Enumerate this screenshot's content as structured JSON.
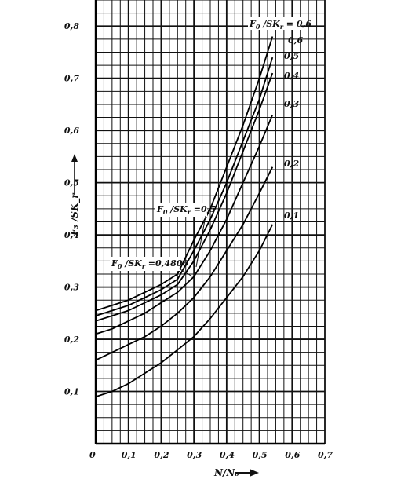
{
  "chart_data": {
    "type": "line",
    "title": "",
    "xlabel": "N/N₀",
    "ylabel": "F₃ /SK_r",
    "xlim": [
      0,
      0.7
    ],
    "ylim": [
      0,
      0.85
    ],
    "grid": true,
    "x_ticks": [
      "0",
      "0,1",
      "0,2",
      "0,3",
      "0,4",
      "0,5",
      "0,6",
      "0,7"
    ],
    "y_ticks": [
      "0,1",
      "0,2",
      "0,3",
      "0,4",
      "0,5",
      "0,6",
      "0,7",
      "0,8"
    ],
    "series": [
      {
        "name": "0,1",
        "x": [
          0,
          0.05,
          0.1,
          0.15,
          0.2,
          0.25,
          0.3,
          0.35,
          0.4,
          0.45,
          0.5,
          0.54
        ],
        "y": [
          0.09,
          0.1,
          0.115,
          0.135,
          0.155,
          0.18,
          0.205,
          0.24,
          0.28,
          0.32,
          0.37,
          0.42
        ]
      },
      {
        "name": "0,2",
        "x": [
          0,
          0.05,
          0.1,
          0.15,
          0.2,
          0.25,
          0.3,
          0.35,
          0.4,
          0.45,
          0.5,
          0.54
        ],
        "y": [
          0.16,
          0.175,
          0.19,
          0.205,
          0.225,
          0.25,
          0.28,
          0.32,
          0.37,
          0.42,
          0.48,
          0.53
        ]
      },
      {
        "name": "0,3",
        "x": [
          0,
          0.05,
          0.1,
          0.15,
          0.2,
          0.25,
          0.3,
          0.35,
          0.4,
          0.45,
          0.5,
          0.54
        ],
        "y": [
          0.21,
          0.22,
          0.235,
          0.25,
          0.27,
          0.29,
          0.32,
          0.37,
          0.43,
          0.5,
          0.57,
          0.63
        ]
      },
      {
        "name": "0,4",
        "x": [
          0,
          0.05,
          0.1,
          0.15,
          0.2,
          0.25,
          0.3,
          0.35,
          0.4,
          0.45,
          0.5,
          0.54
        ],
        "y": [
          0.235,
          0.245,
          0.255,
          0.27,
          0.285,
          0.305,
          0.35,
          0.41,
          0.48,
          0.56,
          0.64,
          0.71
        ]
      },
      {
        "name": "0,5",
        "x": [
          0,
          0.05,
          0.1,
          0.15,
          0.2,
          0.25,
          0.3,
          0.35,
          0.4,
          0.45,
          0.5,
          0.54
        ],
        "y": [
          0.245,
          0.255,
          0.265,
          0.28,
          0.295,
          0.315,
          0.37,
          0.43,
          0.5,
          0.58,
          0.66,
          0.74
        ]
      },
      {
        "name": "0,6",
        "x": [
          0,
          0.05,
          0.1,
          0.15,
          0.2,
          0.25,
          0.3,
          0.35,
          0.4,
          0.45,
          0.5,
          0.54
        ],
        "y": [
          0.255,
          0.265,
          0.275,
          0.29,
          0.305,
          0.325,
          0.39,
          0.45,
          0.53,
          0.61,
          0.7,
          0.78
        ]
      }
    ],
    "curve_labels": [
      "0,6",
      "0,5",
      "0,4",
      "0,3",
      "0,2",
      "0,1"
    ],
    "annotations": [
      {
        "main": "F",
        "sub": "0",
        "rest": " /SK",
        "sub2": "r",
        "tail": " = 0,6"
      },
      {
        "main": "F",
        "sub": "0",
        "rest": " /SK",
        "sub2": "r",
        "tail": " =0,5"
      },
      {
        "main": "F",
        "sub": "0",
        "rest": " /SK",
        "sub2": "r",
        "tail": " =0,4806"
      }
    ]
  }
}
